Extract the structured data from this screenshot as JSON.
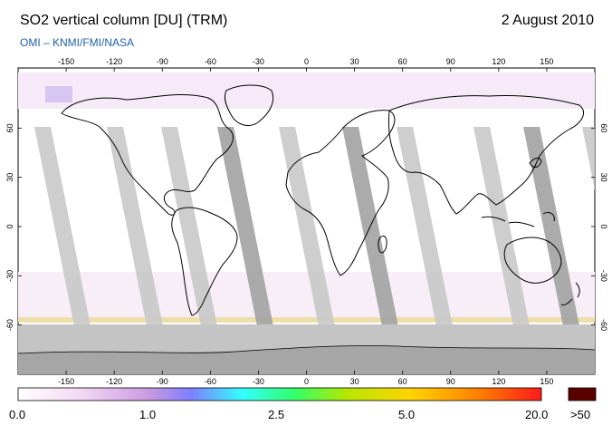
{
  "header": {
    "title": "SO2 vertical column [DU] (TRM)",
    "date": "2 August 2010",
    "source": "OMI  –  KNMI/FMI/NASA"
  },
  "map": {
    "lon_ticks": [
      "-150",
      "-120",
      "-90",
      "-60",
      "-30",
      "0",
      "30",
      "60",
      "90",
      "120",
      "150"
    ],
    "lat_ticks_left": [
      "60",
      "30",
      "0",
      "-30",
      "-60"
    ],
    "lat_ticks_right": [
      "60",
      "30",
      "0",
      "-30",
      "-60"
    ],
    "colors": {
      "swath_gap": "#c9c9c9",
      "swath_dark": "#a3a3a3",
      "antarctic": "#bdbdbd",
      "coast": "#000000"
    }
  },
  "colorbar": {
    "labels": [
      "0.0",
      "1.0",
      "2.5",
      "5.0",
      "20.0"
    ],
    "over_label": ">50",
    "over_color": "#5a0000",
    "stops": [
      "#ffffff",
      "#f4d8f4",
      "#c99ae0",
      "#7f7fff",
      "#33ffff",
      "#33ff66",
      "#b8e600",
      "#ffd400",
      "#ff8000",
      "#ff1a1a"
    ]
  }
}
